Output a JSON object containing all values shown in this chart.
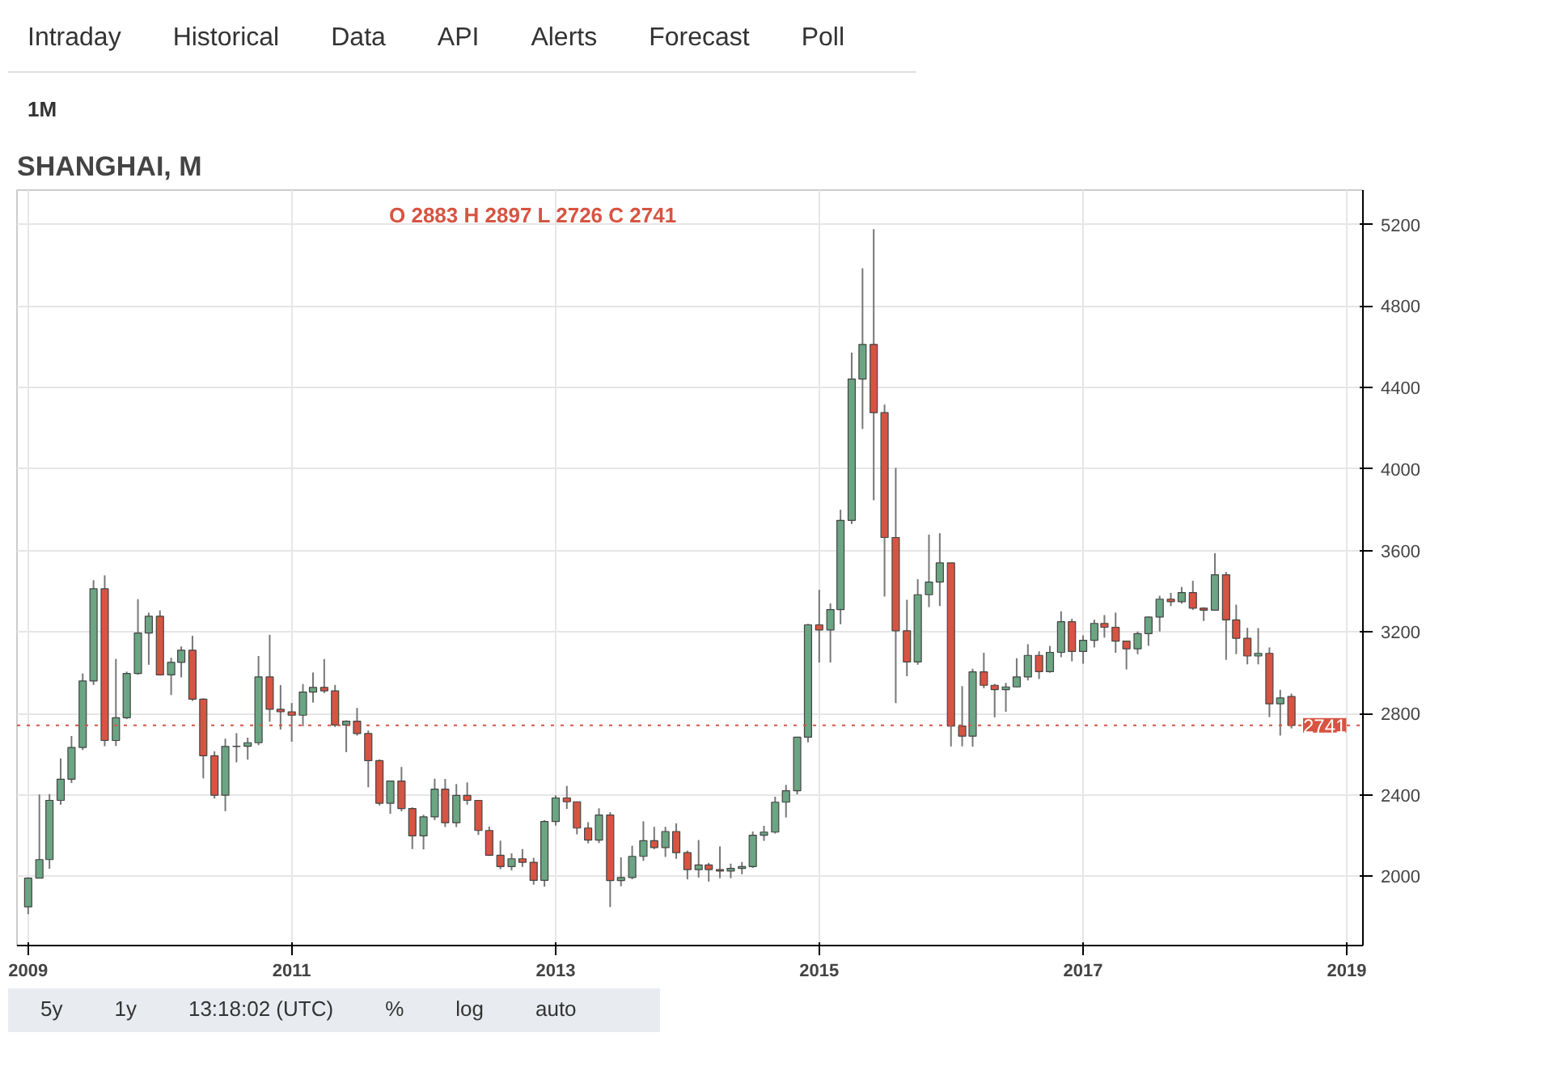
{
  "chart_data": {
    "type": "candlestick",
    "title": "SHANGHAI, M",
    "annotations": [
      "O 2883 H 2897 L 2726 C 2741",
      "Intraday",
      "Historical",
      "Data",
      "API",
      "Alerts",
      "Forecast",
      "Poll",
      "1M",
      "5y",
      "1y",
      "13:18:02 (UTC)",
      "%",
      "log",
      "auto"
    ],
    "x": [
      "2009-01",
      "2009-02",
      "2009-03",
      "2009-04",
      "2009-05",
      "2009-06",
      "2009-07",
      "2009-08",
      "2009-09",
      "2009-10",
      "2009-11",
      "2009-12",
      "2010-01",
      "2010-02",
      "2010-03",
      "2010-04",
      "2010-05",
      "2010-06",
      "2010-07",
      "2010-08",
      "2010-09",
      "2010-10",
      "2010-11",
      "2010-12",
      "2011-01",
      "2011-02",
      "2011-03",
      "2011-04",
      "2011-05",
      "2011-06",
      "2011-07",
      "2011-08",
      "2011-09",
      "2011-10",
      "2011-11",
      "2011-12",
      "2012-01",
      "2012-02",
      "2012-03",
      "2012-04",
      "2012-05",
      "2012-06",
      "2012-07",
      "2012-08",
      "2012-09",
      "2012-10",
      "2012-11",
      "2012-12",
      "2013-01",
      "2013-02",
      "2013-03",
      "2013-04",
      "2013-05",
      "2013-06",
      "2013-07",
      "2013-08",
      "2013-09",
      "2013-10",
      "2013-11",
      "2013-12",
      "2014-01",
      "2014-02",
      "2014-03",
      "2014-04",
      "2014-05",
      "2014-06",
      "2014-07",
      "2014-08",
      "2014-09",
      "2014-10",
      "2014-11",
      "2014-12",
      "2015-01",
      "2015-02",
      "2015-03",
      "2015-04",
      "2015-05",
      "2015-06",
      "2015-07",
      "2015-08",
      "2015-09",
      "2015-10",
      "2015-11",
      "2015-12",
      "2016-01",
      "2016-02",
      "2016-03",
      "2016-04",
      "2016-05",
      "2016-06",
      "2016-07",
      "2016-08",
      "2016-09",
      "2016-10",
      "2016-11",
      "2016-12",
      "2017-01",
      "2017-02",
      "2017-03",
      "2017-04",
      "2017-05",
      "2017-06",
      "2017-07",
      "2017-08",
      "2017-09",
      "2017-10",
      "2017-11",
      "2017-12",
      "2018-01",
      "2018-02",
      "2018-03",
      "2018-04",
      "2018-05",
      "2018-06",
      "2018-07",
      "2018-08"
    ],
    "ohlc": [
      [
        1850,
        1995,
        1814,
        1991
      ],
      [
        1991,
        2402,
        1990,
        2082
      ],
      [
        2082,
        2404,
        2037,
        2373
      ],
      [
        2373,
        2579,
        2351,
        2477
      ],
      [
        2477,
        2689,
        2458,
        2633
      ],
      [
        2633,
        2996,
        2620,
        2959
      ],
      [
        2959,
        3454,
        2940,
        3412
      ],
      [
        3412,
        3478,
        2639,
        2667
      ],
      [
        2667,
        3068,
        2640,
        2779
      ],
      [
        2779,
        3005,
        2772,
        2996
      ],
      [
        2996,
        3361,
        2990,
        3195
      ],
      [
        3195,
        3295,
        3039,
        3277
      ],
      [
        3277,
        3306,
        2986,
        2989
      ],
      [
        2989,
        3073,
        2890,
        3051
      ],
      [
        3051,
        3129,
        2977,
        3110
      ],
      [
        3110,
        3181,
        2861,
        2870
      ],
      [
        2870,
        2874,
        2481,
        2592
      ],
      [
        2592,
        2614,
        2382,
        2398
      ],
      [
        2398,
        2676,
        2320,
        2638
      ],
      [
        2638,
        2703,
        2560,
        2639
      ],
      [
        2639,
        2681,
        2573,
        2656
      ],
      [
        2656,
        3082,
        2644,
        2979
      ],
      [
        2979,
        3186,
        2759,
        2820
      ],
      [
        2820,
        2939,
        2721,
        2808
      ],
      [
        2808,
        2851,
        2661,
        2791
      ],
      [
        2791,
        2944,
        2737,
        2905
      ],
      [
        2905,
        3001,
        2853,
        2928
      ],
      [
        2928,
        3067,
        2900,
        2911
      ],
      [
        2911,
        2940,
        2733,
        2743
      ],
      [
        2743,
        2766,
        2610,
        2762
      ],
      [
        2762,
        2827,
        2691,
        2701
      ],
      [
        2701,
        2716,
        2437,
        2568
      ],
      [
        2568,
        2574,
        2348,
        2359
      ],
      [
        2359,
        2470,
        2307,
        2468
      ],
      [
        2468,
        2537,
        2319,
        2333
      ],
      [
        2333,
        2339,
        2134,
        2199
      ],
      [
        2199,
        2302,
        2132,
        2292
      ],
      [
        2292,
        2479,
        2276,
        2428
      ],
      [
        2428,
        2478,
        2242,
        2263
      ],
      [
        2263,
        2453,
        2242,
        2397
      ],
      [
        2397,
        2461,
        2352,
        2373
      ],
      [
        2373,
        2375,
        2203,
        2225
      ],
      [
        2225,
        2244,
        2100,
        2103
      ],
      [
        2103,
        2175,
        2035,
        2048
      ],
      [
        2048,
        2113,
        2029,
        2086
      ],
      [
        2086,
        2134,
        2046,
        2069
      ],
      [
        2069,
        2091,
        1959,
        1980
      ],
      [
        1980,
        2276,
        1949,
        2269
      ],
      [
        2269,
        2398,
        2249,
        2385
      ],
      [
        2385,
        2444,
        2331,
        2366
      ],
      [
        2366,
        2367,
        2206,
        2237
      ],
      [
        2237,
        2266,
        2162,
        2178
      ],
      [
        2178,
        2334,
        2163,
        2301
      ],
      [
        2301,
        2315,
        1849,
        1979
      ],
      [
        1979,
        2093,
        1951,
        1994
      ],
      [
        1994,
        2150,
        1986,
        2098
      ],
      [
        2098,
        2270,
        2076,
        2175
      ],
      [
        2175,
        2243,
        2133,
        2141
      ],
      [
        2141,
        2243,
        2095,
        2220
      ],
      [
        2220,
        2260,
        2086,
        2116
      ],
      [
        2116,
        2126,
        1985,
        2033
      ],
      [
        2033,
        2178,
        1994,
        2056
      ],
      [
        2056,
        2066,
        1974,
        2033
      ],
      [
        2033,
        2147,
        1991,
        2026
      ],
      [
        2026,
        2062,
        1991,
        2039
      ],
      [
        2039,
        2070,
        2010,
        2048
      ],
      [
        2048,
        2220,
        2041,
        2202
      ],
      [
        2202,
        2248,
        2174,
        2217
      ],
      [
        2217,
        2391,
        2210,
        2364
      ],
      [
        2364,
        2449,
        2289,
        2420
      ],
      [
        2420,
        2683,
        2402,
        2683
      ],
      [
        2683,
        3240,
        2658,
        3235
      ],
      [
        3235,
        3407,
        3050,
        3210
      ],
      [
        3210,
        3340,
        3050,
        3310
      ],
      [
        3310,
        3800,
        3238,
        3748
      ],
      [
        3748,
        4572,
        3730,
        4442
      ],
      [
        4442,
        4986,
        4197,
        4612
      ],
      [
        4612,
        5178,
        3847,
        4277
      ],
      [
        4277,
        4317,
        3374,
        3664
      ],
      [
        3664,
        4006,
        2851,
        3206
      ],
      [
        3206,
        3358,
        2983,
        3053
      ],
      [
        3053,
        3459,
        3039,
        3383
      ],
      [
        3383,
        3678,
        3322,
        3445
      ],
      [
        3445,
        3685,
        3327,
        3539
      ],
      [
        3539,
        3539,
        2638,
        2738
      ],
      [
        2738,
        2934,
        2638,
        2688
      ],
      [
        2688,
        3019,
        2637,
        3004
      ],
      [
        3004,
        3098,
        2924,
        2938
      ],
      [
        2938,
        2945,
        2781,
        2917
      ],
      [
        2917,
        2950,
        2808,
        2930
      ],
      [
        2930,
        3071,
        2927,
        2979
      ],
      [
        2979,
        3140,
        2962,
        3085
      ],
      [
        3085,
        3105,
        2969,
        3005
      ],
      [
        3005,
        3131,
        3000,
        3100
      ],
      [
        3100,
        3301,
        3076,
        3250
      ],
      [
        3250,
        3265,
        3056,
        3104
      ],
      [
        3104,
        3183,
        3044,
        3159
      ],
      [
        3159,
        3260,
        3124,
        3242
      ],
      [
        3242,
        3283,
        3172,
        3223
      ],
      [
        3223,
        3295,
        3098,
        3155
      ],
      [
        3155,
        3157,
        3016,
        3117
      ],
      [
        3117,
        3202,
        3091,
        3192
      ],
      [
        3192,
        3276,
        3132,
        3273
      ],
      [
        3273,
        3378,
        3202,
        3361
      ],
      [
        3361,
        3392,
        3327,
        3349
      ],
      [
        3349,
        3421,
        3339,
        3393
      ],
      [
        3393,
        3451,
        3308,
        3317
      ],
      [
        3317,
        3321,
        3254,
        3307
      ],
      [
        3307,
        3587,
        3307,
        3481
      ],
      [
        3481,
        3495,
        3063,
        3259
      ],
      [
        3259,
        3334,
        3091,
        3169
      ],
      [
        3169,
        3220,
        3041,
        3082
      ],
      [
        3082,
        3219,
        3041,
        3095
      ],
      [
        3095,
        3124,
        2782,
        2847
      ],
      [
        2847,
        2916,
        2691,
        2876
      ],
      [
        2883,
        2897,
        2726,
        2741
      ]
    ],
    "colors": [
      "#6ba583",
      "#6ba583",
      "#6ba583",
      "#6ba583",
      "#6ba583",
      "#6ba583",
      "#6ba583",
      "#d75442",
      "#6ba583",
      "#6ba583",
      "#6ba583",
      "#6ba583",
      "#d75442",
      "#6ba583",
      "#6ba583",
      "#d75442",
      "#d75442",
      "#d75442",
      "#6ba583",
      "#6ba583",
      "#6ba583",
      "#6ba583",
      "#d75442",
      "#d75442",
      "#d75442",
      "#6ba583",
      "#6ba583",
      "#d75442",
      "#d75442",
      "#6ba583",
      "#d75442",
      "#d75442",
      "#d75442",
      "#6ba583",
      "#d75442",
      "#d75442",
      "#6ba583",
      "#6ba583",
      "#d75442",
      "#6ba583",
      "#d75442",
      "#d75442",
      "#d75442",
      "#d75442",
      "#6ba583",
      "#d75442",
      "#d75442",
      "#6ba583",
      "#6ba583",
      "#d75442",
      "#d75442",
      "#d75442",
      "#6ba583",
      "#d75442",
      "#6ba583",
      "#6ba583",
      "#6ba583",
      "#d75442",
      "#6ba583",
      "#d75442",
      "#d75442",
      "#6ba583",
      "#d75442",
      "#d75442",
      "#6ba583",
      "#6ba583",
      "#6ba583",
      "#6ba583",
      "#6ba583",
      "#6ba583",
      "#6ba583",
      "#6ba583",
      "#d75442",
      "#6ba583",
      "#6ba583",
      "#6ba583",
      "#6ba583",
      "#d75442",
      "#d75442",
      "#d75442",
      "#d75442",
      "#6ba583",
      "#6ba583",
      "#6ba583",
      "#d75442",
      "#d75442",
      "#6ba583",
      "#d75442",
      "#d75442",
      "#6ba583",
      "#6ba583",
      "#6ba583",
      "#d75442",
      "#6ba583",
      "#6ba583",
      "#d75442",
      "#6ba583",
      "#6ba583",
      "#d75442",
      "#d75442",
      "#d75442",
      "#6ba583",
      "#6ba583",
      "#6ba583",
      "#d75442",
      "#6ba583",
      "#d75442",
      "#d75442",
      "#6ba583",
      "#d75442",
      "#d75442",
      "#d75442",
      "#6ba583",
      "#d75442",
      "#6ba583",
      "#d75442"
    ],
    "xlim": [
      "2008-12-01",
      "2019-02-15"
    ],
    "xticks": [
      {
        "value": "2009-01",
        "label": "2009"
      },
      {
        "value": "2011-01",
        "label": "2011"
      },
      {
        "value": "2013-01",
        "label": "2013"
      },
      {
        "value": "2015-01",
        "label": "2015"
      },
      {
        "value": "2017-01",
        "label": "2017"
      },
      {
        "value": "2019-01",
        "label": "2019"
      }
    ],
    "ylim": [
      1660,
      5370
    ],
    "yticks": [
      2000,
      2400,
      2800,
      3200,
      3600,
      4000,
      4400,
      4800,
      5200
    ],
    "ref_lines": [
      {
        "axis": "y",
        "value": 2741,
        "label": "2741",
        "color": "#d75442",
        "line_style": "dotted"
      }
    ],
    "grid": true
  }
}
